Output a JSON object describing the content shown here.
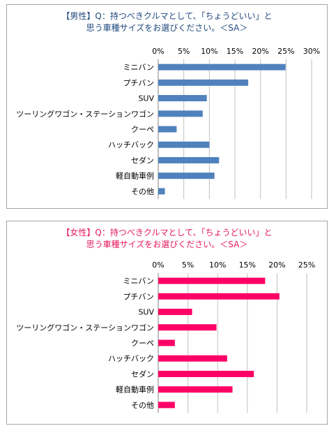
{
  "chart_data": [
    {
      "type": "bar",
      "orientation": "horizontal",
      "title_line1": "【男性】Q：持つべきクルマとして、「ちょうどいい」と",
      "title_line2": "思う車種サイズをお選びください。＜SA＞",
      "categories": [
        "ミニバン",
        "プチバン",
        "SUV",
        "ツーリングワゴン・ステーションワゴン",
        "クーペ",
        "ハッチバック",
        "セダン",
        "軽自動車例",
        "その他"
      ],
      "values": [
        24.9,
        17.6,
        9.5,
        8.7,
        3.6,
        10.0,
        11.9,
        11.0,
        1.3
      ],
      "xlim": [
        0,
        30
      ],
      "ticks": [
        "0%",
        "5%",
        "10%",
        "15%",
        "20%",
        "25%",
        "30%"
      ],
      "grid": true,
      "color": "#4f81bd"
    },
    {
      "type": "bar",
      "orientation": "horizontal",
      "title_line1": "【女性】Q：持つべきクルマとして、「ちょうどいい」と",
      "title_line2": "思う車種サイズをお選びください。＜SA＞",
      "categories": [
        "ミニバン",
        "プチバン",
        "SUV",
        "ツーリングワゴン・ステーションワゴン",
        "クーペ",
        "ハッチバック",
        "セダン",
        "軽自動車例",
        "その他"
      ],
      "values": [
        18.0,
        20.4,
        5.7,
        9.8,
        2.8,
        11.6,
        16.1,
        12.5,
        2.8
      ],
      "xlim": [
        0,
        25
      ],
      "ticks": [
        "0%",
        "5%",
        "10%",
        "15%",
        "20%",
        "25%"
      ],
      "grid": true,
      "color": "#ff0066"
    }
  ]
}
